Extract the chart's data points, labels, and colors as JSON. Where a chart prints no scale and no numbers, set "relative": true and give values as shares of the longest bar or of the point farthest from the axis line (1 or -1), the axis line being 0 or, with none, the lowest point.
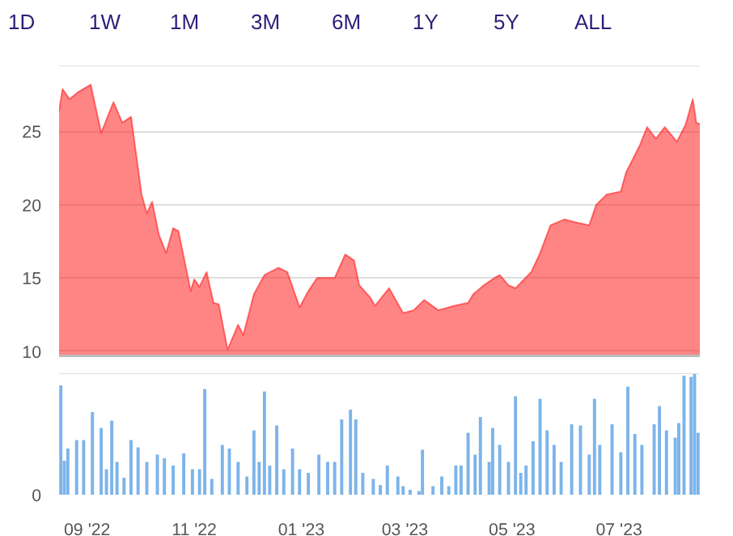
{
  "chart_data": [
    {
      "type": "area",
      "annotations": [
        "1D",
        "1W",
        "1M",
        "3M",
        "6M",
        "1Y",
        "5Y",
        "ALL"
      ],
      "x": [
        "2022-08-16",
        "2022-08-18",
        "2022-08-22",
        "2022-08-27",
        "2022-09-03",
        "2022-09-09",
        "2022-09-16",
        "2022-09-21",
        "2022-09-26",
        "2022-10-02",
        "2022-10-05",
        "2022-10-08",
        "2022-10-12",
        "2022-10-16",
        "2022-10-20",
        "2022-10-23",
        "2022-10-30",
        "2022-11-01",
        "2022-11-04",
        "2022-11-08",
        "2022-11-12",
        "2022-11-15",
        "2022-11-20",
        "2022-11-26",
        "2022-11-29",
        "2022-12-05",
        "2022-12-11",
        "2022-12-19",
        "2022-12-24",
        "2022-12-31",
        "2023-01-05",
        "2023-01-10",
        "2023-01-14",
        "2023-01-20",
        "2023-01-26",
        "2023-01-31",
        "2023-02-03",
        "2023-02-09",
        "2023-02-12",
        "2023-02-20",
        "2023-02-28",
        "2023-03-06",
        "2023-03-12",
        "2023-03-20",
        "2023-03-29",
        "2023-04-06",
        "2023-04-09",
        "2023-04-15",
        "2023-04-21",
        "2023-04-24",
        "2023-04-29",
        "2023-05-03",
        "2023-05-12",
        "2023-05-17",
        "2023-05-23",
        "2023-05-31",
        "2023-06-06",
        "2023-06-14",
        "2023-06-18",
        "2023-06-24",
        "2023-07-02",
        "2023-07-05",
        "2023-07-13",
        "2023-07-17",
        "2023-07-22",
        "2023-07-27",
        "2023-08-03",
        "2023-08-08",
        "2023-08-12",
        "2023-08-14",
        "2023-08-16"
      ],
      "series": [
        {
          "color": "#ff2020",
          "values": [
            26.4,
            27.9,
            27.2,
            27.7,
            28.2,
            24.9,
            27.0,
            25.6,
            26.0,
            20.7,
            19.4,
            20.2,
            17.9,
            16.7,
            18.4,
            18.2,
            14.1,
            14.9,
            14.4,
            15.4,
            13.3,
            13.2,
            10.1,
            11.8,
            11.1,
            13.9,
            15.2,
            15.7,
            15.4,
            13.0,
            14.1,
            15.0,
            15.0,
            15.0,
            16.6,
            16.2,
            14.5,
            13.7,
            13.1,
            14.3,
            12.6,
            12.8,
            13.5,
            12.8,
            13.1,
            13.3,
            13.9,
            14.5,
            15.0,
            15.2,
            14.5,
            14.3,
            15.4,
            16.7,
            18.6,
            19.0,
            18.8,
            18.6,
            20.0,
            20.7,
            20.9,
            22.2,
            24.1,
            25.3,
            24.5,
            25.3,
            24.3,
            25.5,
            27.2,
            25.6,
            25.5
          ]
        }
      ],
      "xlim": [
        "2022-08-16",
        "2023-08-16"
      ],
      "ylim": [
        9.6,
        29.5
      ],
      "yticks": [
        10,
        15,
        20,
        25
      ],
      "grid": "y",
      "tick_labels": "y"
    },
    {
      "type": "bar",
      "relative": true,
      "annotations": [
        "0"
      ],
      "x": [
        "2022-08-17",
        "2022-08-19",
        "2022-08-21",
        "2022-08-26",
        "2022-08-30",
        "2022-09-04",
        "2022-09-09",
        "2022-09-12",
        "2022-09-15",
        "2022-09-18",
        "2022-09-22",
        "2022-09-26",
        "2022-09-30",
        "2022-10-05",
        "2022-10-11",
        "2022-10-15",
        "2022-10-20",
        "2022-10-26",
        "2022-10-31",
        "2022-11-04",
        "2022-11-07",
        "2022-11-11",
        "2022-11-17",
        "2022-11-21",
        "2022-11-26",
        "2022-12-01",
        "2022-12-05",
        "2022-12-08",
        "2022-12-11",
        "2022-12-14",
        "2022-12-18",
        "2022-12-22",
        "2022-12-27",
        "2022-12-31",
        "2023-01-05",
        "2023-01-11",
        "2023-01-16",
        "2023-01-20",
        "2023-01-24",
        "2023-01-29",
        "2023-02-01",
        "2023-02-05",
        "2023-02-11",
        "2023-02-15",
        "2023-02-19",
        "2023-02-25",
        "2023-02-28",
        "2023-03-04",
        "2023-03-09",
        "2023-03-11",
        "2023-03-17",
        "2023-03-22",
        "2023-03-26",
        "2023-03-30",
        "2023-04-02",
        "2023-04-06",
        "2023-04-10",
        "2023-04-13",
        "2023-04-18",
        "2023-04-20",
        "2023-04-24",
        "2023-04-29",
        "2023-05-03",
        "2023-05-06",
        "2023-05-09",
        "2023-05-13",
        "2023-05-17",
        "2023-05-21",
        "2023-05-25",
        "2023-05-29",
        "2023-06-04",
        "2023-06-09",
        "2023-06-14",
        "2023-06-17",
        "2023-06-20",
        "2023-06-27",
        "2023-07-02",
        "2023-07-06",
        "2023-07-10",
        "2023-07-14",
        "2023-07-21",
        "2023-07-24",
        "2023-07-28",
        "2023-08-02",
        "2023-08-04",
        "2023-08-07",
        "2023-08-11",
        "2023-08-13",
        "2023-08-15"
      ],
      "series": [
        {
          "color": "#7cb4ea",
          "values": [
            0.9,
            0.28,
            0.38,
            0.45,
            0.45,
            0.68,
            0.55,
            0.21,
            0.61,
            0.27,
            0.14,
            0.45,
            0.39,
            0.27,
            0.33,
            0.3,
            0.24,
            0.34,
            0.21,
            0.21,
            0.87,
            0.13,
            0.41,
            0.38,
            0.27,
            0.15,
            0.53,
            0.27,
            0.85,
            0.24,
            0.57,
            0.21,
            0.38,
            0.21,
            0.18,
            0.33,
            0.27,
            0.27,
            0.62,
            0.7,
            0.62,
            0.18,
            0.13,
            0.08,
            0.24,
            0.15,
            0.07,
            0.04,
            0.03,
            0.37,
            0.07,
            0.15,
            0.07,
            0.24,
            0.24,
            0.51,
            0.33,
            0.64,
            0.27,
            0.55,
            0.41,
            0.27,
            0.81,
            0.18,
            0.24,
            0.44,
            0.79,
            0.53,
            0.41,
            0.27,
            0.58,
            0.57,
            0.33,
            0.79,
            0.41,
            0.58,
            0.35,
            0.89,
            0.5,
            0.41,
            0.58,
            0.73,
            0.53,
            0.47,
            0.59,
            0.98,
            0.97,
            1.0,
            0.51
          ]
        }
      ],
      "xlim": [
        "2022-08-16",
        "2023-08-16"
      ],
      "xticks": [
        {
          "value": "2022-09-01",
          "label": "09 '22"
        },
        {
          "value": "2022-11-01",
          "label": "11 '22"
        },
        {
          "value": "2023-01-01",
          "label": "01 '23"
        },
        {
          "value": "2023-03-01",
          "label": "03 '23"
        },
        {
          "value": "2023-05-01",
          "label": "05 '23"
        },
        {
          "value": "2023-07-01",
          "label": "07 '23"
        }
      ],
      "tick_labels": "x"
    }
  ]
}
